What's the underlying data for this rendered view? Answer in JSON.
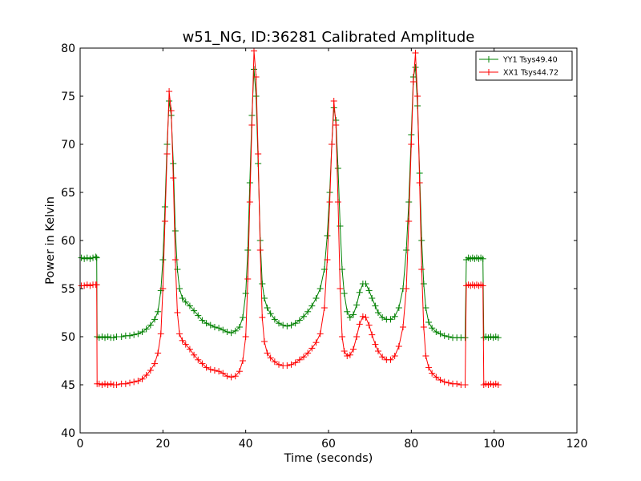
{
  "chart_data": {
    "type": "line",
    "title": "w51_NG, ID:36281 Calibrated Amplitude",
    "xlabel": "Time (seconds)",
    "ylabel": "Power in Kelvin",
    "xlim": [
      0,
      120
    ],
    "ylim": [
      40,
      80
    ],
    "xticks": [
      0,
      20,
      40,
      60,
      80,
      100,
      120
    ],
    "yticks": [
      40,
      45,
      50,
      55,
      60,
      65,
      70,
      75,
      80
    ],
    "grid": false,
    "legend_position": "top-right",
    "series": [
      {
        "name": "YY1 Tsys49.40",
        "color": "#008000",
        "marker": "+",
        "points": [
          [
            0.3,
            58.2
          ],
          [
            1.0,
            58.1
          ],
          [
            1.7,
            58.2
          ],
          [
            2.4,
            58.1
          ],
          [
            3.1,
            58.2
          ],
          [
            3.8,
            58.3
          ],
          [
            4.0,
            58.2
          ],
          [
            4.1,
            50.0
          ],
          [
            4.6,
            49.9
          ],
          [
            5.3,
            50.0
          ],
          [
            6.0,
            49.9
          ],
          [
            6.7,
            50.0
          ],
          [
            7.4,
            49.9
          ],
          [
            8.1,
            49.9
          ],
          [
            8.8,
            50.0
          ],
          [
            10.0,
            50.0
          ],
          [
            11.0,
            50.1
          ],
          [
            12.0,
            50.1
          ],
          [
            13.0,
            50.2
          ],
          [
            14.0,
            50.3
          ],
          [
            15.0,
            50.5
          ],
          [
            16.0,
            50.8
          ],
          [
            17.0,
            51.2
          ],
          [
            18.0,
            51.8
          ],
          [
            18.8,
            52.6
          ],
          [
            19.5,
            54.8
          ],
          [
            20.0,
            58.0
          ],
          [
            20.5,
            63.5
          ],
          [
            21.0,
            70.0
          ],
          [
            21.5,
            74.5
          ],
          [
            22.0,
            73.0
          ],
          [
            22.5,
            68.0
          ],
          [
            23.0,
            61.0
          ],
          [
            23.5,
            57.0
          ],
          [
            24.0,
            55.0
          ],
          [
            24.7,
            54.0
          ],
          [
            25.5,
            53.6
          ],
          [
            26.5,
            53.2
          ],
          [
            27.5,
            52.7
          ],
          [
            28.5,
            52.2
          ],
          [
            29.5,
            51.7
          ],
          [
            30.5,
            51.4
          ],
          [
            31.5,
            51.2
          ],
          [
            32.5,
            51.0
          ],
          [
            33.5,
            50.9
          ],
          [
            34.5,
            50.7
          ],
          [
            35.5,
            50.5
          ],
          [
            36.5,
            50.4
          ],
          [
            37.5,
            50.6
          ],
          [
            38.5,
            51.0
          ],
          [
            39.3,
            52.0
          ],
          [
            40.0,
            54.5
          ],
          [
            40.5,
            59.0
          ],
          [
            41.0,
            66.0
          ],
          [
            41.5,
            73.0
          ],
          [
            42.0,
            77.8
          ],
          [
            42.5,
            75.0
          ],
          [
            43.0,
            68.0
          ],
          [
            43.5,
            60.0
          ],
          [
            44.0,
            55.5
          ],
          [
            44.5,
            54.0
          ],
          [
            45.2,
            53.0
          ],
          [
            46.0,
            52.4
          ],
          [
            47.0,
            51.8
          ],
          [
            48.0,
            51.4
          ],
          [
            49.0,
            51.2
          ],
          [
            50.0,
            51.1
          ],
          [
            51.0,
            51.2
          ],
          [
            52.0,
            51.4
          ],
          [
            53.0,
            51.7
          ],
          [
            54.0,
            52.1
          ],
          [
            55.0,
            52.6
          ],
          [
            56.0,
            53.2
          ],
          [
            57.0,
            54.0
          ],
          [
            58.0,
            55.0
          ],
          [
            59.0,
            57.0
          ],
          [
            59.7,
            60.5
          ],
          [
            60.3,
            65.0
          ],
          [
            60.8,
            70.0
          ],
          [
            61.3,
            73.8
          ],
          [
            61.8,
            72.5
          ],
          [
            62.3,
            67.5
          ],
          [
            62.8,
            61.5
          ],
          [
            63.3,
            57.0
          ],
          [
            63.8,
            54.5
          ],
          [
            64.5,
            52.6
          ],
          [
            65.2,
            52.0
          ],
          [
            66.0,
            52.3
          ],
          [
            66.8,
            53.3
          ],
          [
            67.5,
            54.6
          ],
          [
            68.3,
            55.5
          ],
          [
            69.0,
            55.5
          ],
          [
            69.8,
            54.8
          ],
          [
            70.5,
            54.0
          ],
          [
            71.3,
            53.2
          ],
          [
            72.0,
            52.5
          ],
          [
            73.0,
            52.0
          ],
          [
            74.0,
            51.8
          ],
          [
            75.0,
            51.8
          ],
          [
            76.0,
            52.1
          ],
          [
            77.0,
            53.0
          ],
          [
            78.0,
            55.0
          ],
          [
            78.8,
            59.0
          ],
          [
            79.4,
            64.0
          ],
          [
            80.0,
            71.0
          ],
          [
            80.5,
            77.0
          ],
          [
            81.0,
            78.0
          ],
          [
            81.5,
            74.0
          ],
          [
            82.0,
            67.0
          ],
          [
            82.5,
            60.0
          ],
          [
            83.0,
            55.5
          ],
          [
            83.5,
            53.0
          ],
          [
            84.2,
            51.5
          ],
          [
            85.0,
            50.9
          ],
          [
            86.0,
            50.5
          ],
          [
            87.0,
            50.3
          ],
          [
            88.0,
            50.1
          ],
          [
            89.0,
            50.0
          ],
          [
            90.0,
            49.9
          ],
          [
            91.0,
            49.9
          ],
          [
            92.0,
            49.9
          ],
          [
            93.0,
            49.9
          ],
          [
            93.3,
            58.0
          ],
          [
            93.8,
            58.2
          ],
          [
            94.3,
            58.1
          ],
          [
            94.8,
            58.2
          ],
          [
            95.3,
            58.1
          ],
          [
            95.8,
            58.2
          ],
          [
            96.3,
            58.1
          ],
          [
            96.8,
            58.2
          ],
          [
            97.3,
            58.1
          ],
          [
            97.5,
            49.9
          ],
          [
            98.0,
            50.0
          ],
          [
            98.6,
            49.9
          ],
          [
            99.2,
            50.0
          ],
          [
            99.8,
            49.9
          ],
          [
            100.4,
            50.0
          ],
          [
            101.0,
            49.9
          ]
        ]
      },
      {
        "name": "XX1 Tsys44.72",
        "color": "#ff0000",
        "marker": "+",
        "points": [
          [
            0.3,
            55.3
          ],
          [
            1.0,
            55.3
          ],
          [
            1.7,
            55.4
          ],
          [
            2.4,
            55.3
          ],
          [
            3.1,
            55.4
          ],
          [
            3.8,
            55.4
          ],
          [
            4.0,
            55.4
          ],
          [
            4.1,
            45.1
          ],
          [
            4.6,
            45.1
          ],
          [
            5.3,
            45.0
          ],
          [
            6.0,
            45.1
          ],
          [
            6.7,
            45.0
          ],
          [
            7.4,
            45.1
          ],
          [
            8.1,
            45.0
          ],
          [
            8.8,
            45.0
          ],
          [
            10.0,
            45.1
          ],
          [
            11.0,
            45.1
          ],
          [
            12.0,
            45.2
          ],
          [
            13.0,
            45.3
          ],
          [
            14.0,
            45.4
          ],
          [
            15.0,
            45.6
          ],
          [
            16.0,
            46.0
          ],
          [
            17.0,
            46.5
          ],
          [
            18.0,
            47.2
          ],
          [
            18.8,
            48.3
          ],
          [
            19.5,
            50.3
          ],
          [
            20.0,
            55.0
          ],
          [
            20.5,
            62.0
          ],
          [
            21.0,
            69.0
          ],
          [
            21.5,
            75.5
          ],
          [
            22.0,
            73.5
          ],
          [
            22.5,
            66.5
          ],
          [
            23.0,
            58.0
          ],
          [
            23.5,
            52.5
          ],
          [
            24.0,
            50.3
          ],
          [
            24.7,
            49.6
          ],
          [
            25.5,
            49.2
          ],
          [
            26.5,
            48.7
          ],
          [
            27.5,
            48.1
          ],
          [
            28.5,
            47.6
          ],
          [
            29.5,
            47.2
          ],
          [
            30.5,
            46.8
          ],
          [
            31.5,
            46.6
          ],
          [
            32.5,
            46.5
          ],
          [
            33.5,
            46.4
          ],
          [
            34.5,
            46.2
          ],
          [
            35.5,
            45.9
          ],
          [
            36.5,
            45.8
          ],
          [
            37.5,
            45.9
          ],
          [
            38.5,
            46.4
          ],
          [
            39.3,
            47.5
          ],
          [
            40.0,
            50.0
          ],
          [
            40.5,
            56.0
          ],
          [
            41.0,
            64.0
          ],
          [
            41.5,
            72.0
          ],
          [
            42.0,
            79.7
          ],
          [
            42.5,
            77.0
          ],
          [
            43.0,
            69.0
          ],
          [
            43.5,
            59.0
          ],
          [
            44.0,
            52.0
          ],
          [
            44.5,
            49.5
          ],
          [
            45.2,
            48.3
          ],
          [
            46.0,
            47.8
          ],
          [
            47.0,
            47.4
          ],
          [
            48.0,
            47.1
          ],
          [
            49.0,
            47.0
          ],
          [
            50.0,
            47.0
          ],
          [
            51.0,
            47.1
          ],
          [
            52.0,
            47.3
          ],
          [
            53.0,
            47.6
          ],
          [
            54.0,
            47.9
          ],
          [
            55.0,
            48.3
          ],
          [
            56.0,
            48.8
          ],
          [
            57.0,
            49.4
          ],
          [
            58.0,
            50.3
          ],
          [
            59.0,
            53.0
          ],
          [
            59.7,
            58.0
          ],
          [
            60.3,
            64.0
          ],
          [
            60.8,
            70.0
          ],
          [
            61.3,
            74.5
          ],
          [
            61.8,
            72.0
          ],
          [
            62.3,
            64.0
          ],
          [
            62.8,
            55.0
          ],
          [
            63.3,
            50.0
          ],
          [
            63.8,
            48.5
          ],
          [
            64.5,
            48.0
          ],
          [
            65.2,
            48.1
          ],
          [
            66.0,
            48.7
          ],
          [
            66.8,
            50.0
          ],
          [
            67.5,
            51.3
          ],
          [
            68.3,
            52.1
          ],
          [
            69.0,
            52.0
          ],
          [
            69.8,
            51.2
          ],
          [
            70.5,
            50.2
          ],
          [
            71.3,
            49.2
          ],
          [
            72.0,
            48.5
          ],
          [
            73.0,
            47.9
          ],
          [
            74.0,
            47.6
          ],
          [
            75.0,
            47.6
          ],
          [
            76.0,
            48.0
          ],
          [
            77.0,
            49.0
          ],
          [
            78.0,
            51.0
          ],
          [
            78.8,
            55.0
          ],
          [
            79.4,
            62.0
          ],
          [
            80.0,
            70.0
          ],
          [
            80.5,
            76.5
          ],
          [
            81.0,
            79.5
          ],
          [
            81.5,
            75.0
          ],
          [
            82.0,
            66.0
          ],
          [
            82.5,
            57.0
          ],
          [
            83.0,
            51.0
          ],
          [
            83.5,
            48.0
          ],
          [
            84.2,
            46.8
          ],
          [
            85.0,
            46.2
          ],
          [
            86.0,
            45.8
          ],
          [
            87.0,
            45.5
          ],
          [
            88.0,
            45.3
          ],
          [
            89.0,
            45.2
          ],
          [
            90.0,
            45.1
          ],
          [
            91.0,
            45.1
          ],
          [
            92.0,
            45.0
          ],
          [
            93.0,
            45.0
          ],
          [
            93.3,
            55.3
          ],
          [
            93.8,
            55.4
          ],
          [
            94.3,
            55.3
          ],
          [
            94.8,
            55.4
          ],
          [
            95.3,
            55.3
          ],
          [
            95.8,
            55.4
          ],
          [
            96.3,
            55.3
          ],
          [
            96.8,
            55.4
          ],
          [
            97.3,
            55.3
          ],
          [
            97.5,
            45.0
          ],
          [
            98.0,
            45.1
          ],
          [
            98.6,
            45.0
          ],
          [
            99.2,
            45.1
          ],
          [
            99.8,
            45.0
          ],
          [
            100.4,
            45.1
          ],
          [
            101.0,
            45.0
          ]
        ]
      }
    ]
  }
}
